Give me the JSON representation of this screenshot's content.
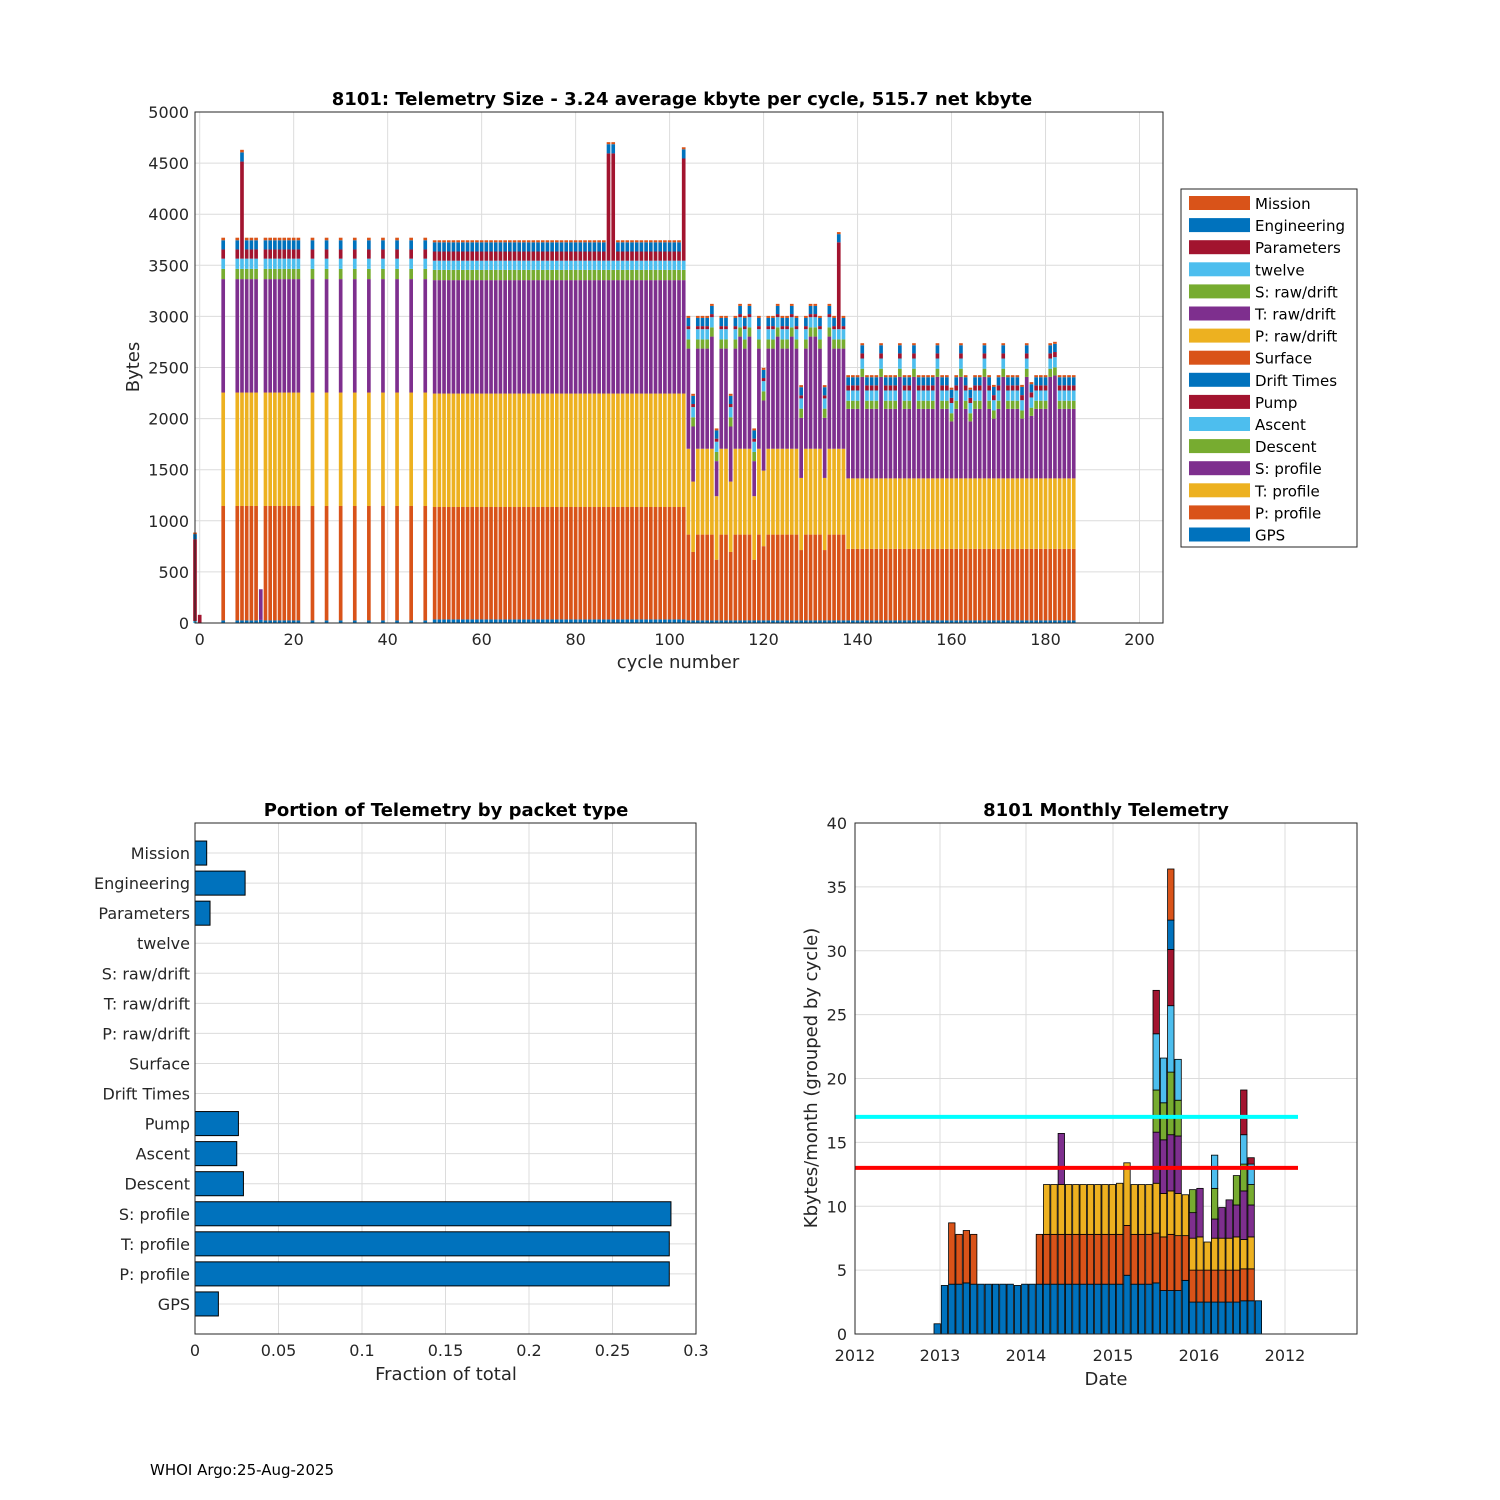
{
  "colors": {
    "Mission": "#D95319",
    "Engineering": "#0072BD",
    "Parameters": "#A2142F",
    "twelve": "#4DBEEE",
    "S: raw/drift": "#77AC30",
    "T: raw/drift": "#7E2F8E",
    "P: raw/drift": "#EDB120",
    "Surface": "#D95319",
    "Drift Times": "#0072BD",
    "Pump": "#A2142F",
    "Ascent": "#4DBEEE",
    "Descent": "#77AC30",
    "S: profile": "#7E2F8E",
    "T: profile": "#EDB120",
    "P: profile": "#D95319",
    "GPS": "#0072BD",
    "cyan_line": "#00FFFF",
    "red_line": "#FF0000"
  },
  "footer": "WHOI Argo:25-Aug-2025",
  "chart_data": [
    {
      "type": "bar",
      "stacked": true,
      "title": "8101: Telemetry Size - 3.24 average kbyte per cycle,  515.7 net kbyte",
      "xlabel": "cycle number",
      "ylabel": "Bytes",
      "xlim": [
        -1,
        205
      ],
      "ylim": [
        0,
        5000
      ],
      "xticks": [
        0,
        20,
        40,
        60,
        80,
        100,
        120,
        140,
        160,
        180,
        200
      ],
      "yticks": [
        0,
        500,
        1000,
        1500,
        2000,
        2500,
        3000,
        3500,
        4000,
        4500,
        5000
      ],
      "grid": true,
      "legend_position": "outside-right",
      "legend": [
        "Mission",
        "Engineering",
        "Parameters",
        "twelve",
        "S: raw/drift",
        "T: raw/drift",
        "P: raw/drift",
        "Surface",
        "Drift Times",
        "Pump",
        "Ascent",
        "Descent",
        "S: profile",
        "T: profile",
        "P: profile",
        "GPS"
      ],
      "stack_order_bottom_up": [
        "GPS",
        "P: profile",
        "T: profile",
        "S: profile",
        "Descent",
        "Ascent",
        "Pump",
        "Drift Times",
        "Surface",
        "P: raw/drift",
        "T: raw/drift",
        "S: raw/drift",
        "twelve",
        "Parameters",
        "Engineering",
        "Mission"
      ],
      "special_bars": [
        {
          "cycle": -1,
          "segments": {
            "Pump": 800,
            "Ascent": 20,
            "Engineering": 50,
            "Mission": 15
          }
        },
        {
          "cycle": 0,
          "segments": {
            "Pump": 80
          }
        },
        {
          "cycle": 13,
          "segments": {
            "GPS": 30,
            "S: profile": 300
          }
        },
        {
          "cycle": 9,
          "total_override": 4600,
          "segments": {
            "Pump": 950
          }
        },
        {
          "cycle": 87,
          "total_override": 4620,
          "segments": {
            "Pump": 1050
          }
        },
        {
          "cycle": 88,
          "total_override": 4600,
          "segments": {
            "Pump": 1050
          }
        },
        {
          "cycle": 103,
          "total_override": 4580,
          "segments": {
            "Pump": 1000
          }
        },
        {
          "cycle": 136,
          "total_override": 4060,
          "segments": {
            "Pump": 850
          }
        }
      ],
      "phases": [
        {
          "name": "phase1",
          "cycles": "5-50 (odd sampling, gaps)",
          "segments": {
            "GPS": 25,
            "P: profile": 1120,
            "T: profile": 1110,
            "S: profile": 1110,
            "Descent": 100,
            "Ascent": 100,
            "Pump": 90,
            "Engineering": 90,
            "Mission": 25
          }
        },
        {
          "name": "phase2",
          "cycles": "50-104",
          "segments": {
            "GPS": 35,
            "P: profile": 1100,
            "T: profile": 1110,
            "S: profile": 1110,
            "Descent": 100,
            "Ascent": 90,
            "Pump": 90,
            "Engineering": 90,
            "Mission": 20
          }
        },
        {
          "name": "phase3",
          "cycles": "104-138",
          "segments": {
            "GPS": 25,
            "P: profile": 840,
            "T: profile": 840,
            "S: profile": 980,
            "Descent": 90,
            "Ascent": 100,
            "Pump": 30,
            "Engineering": 80,
            "Mission": 20
          }
        },
        {
          "name": "phase4",
          "cycles": "138-186",
          "segments": {
            "GPS": 25,
            "P: profile": 700,
            "T: profile": 690,
            "S: profile": 680,
            "Descent": 80,
            "Ascent": 100,
            "Pump": 50,
            "Engineering": 80,
            "Mission": 20
          }
        }
      ]
    },
    {
      "type": "bar",
      "orientation": "horizontal",
      "title": "Portion of Telemetry by packet type",
      "xlabel": "Fraction of total",
      "ylabel": "",
      "xlim": [
        0,
        0.3
      ],
      "xticks": [
        0,
        0.05,
        0.1,
        0.15,
        0.2,
        0.25,
        0.3
      ],
      "xtick_labels": [
        "0",
        "0.05",
        "0.1",
        "0.15",
        "0.2",
        "0.25",
        "0.3"
      ],
      "grid": true,
      "categories": [
        "Mission",
        "Engineering",
        "Parameters",
        "twelve",
        "S: raw/drift",
        "T: raw/drift",
        "P: raw/drift",
        "Surface",
        "Drift Times",
        "Pump",
        "Ascent",
        "Descent",
        "S: profile",
        "T: profile",
        "P: profile",
        "GPS"
      ],
      "values": [
        0.007,
        0.03,
        0.009,
        0,
        0,
        0,
        0,
        0,
        0,
        0.026,
        0.025,
        0.029,
        0.285,
        0.284,
        0.284,
        0.014
      ],
      "color": "#0072BD"
    },
    {
      "type": "bar",
      "stacked": true,
      "title": "8101 Monthly Telemetry",
      "xlabel": "Date",
      "ylabel": "Kbytes/month (grouped by cycle)",
      "ylim": [
        0,
        40
      ],
      "yticks": [
        0,
        5,
        10,
        15,
        20,
        25,
        30,
        35,
        40
      ],
      "xtick_labels": [
        "2012",
        "2013",
        "2014",
        "2015",
        "2016",
        "2012"
      ],
      "grid": true,
      "hlines": [
        {
          "y": 17,
          "color": "#00FFFF"
        },
        {
          "y": 13,
          "color": "#FF0000"
        }
      ],
      "bar_order": "left-to-right, months from late 2012",
      "monthly": [
        {
          "seg": [
            0.8
          ]
        },
        {
          "seg": [
            3.8
          ]
        },
        {
          "seg": [
            3.9,
            4.8
          ]
        },
        {
          "seg": [
            3.9,
            3.9
          ]
        },
        {
          "seg": [
            4.0,
            4.1
          ]
        },
        {
          "seg": [
            3.9,
            3.9
          ]
        },
        {
          "seg": [
            3.9
          ]
        },
        {
          "seg": [
            3.9
          ]
        },
        {
          "seg": [
            3.9
          ]
        },
        {
          "seg": [
            3.9
          ]
        },
        {
          "seg": [
            3.9
          ]
        },
        {
          "seg": [
            3.8
          ]
        },
        {
          "seg": [
            3.9
          ]
        },
        {
          "seg": [
            3.9
          ]
        },
        {
          "seg": [
            3.9,
            3.9
          ]
        },
        {
          "seg": [
            3.9,
            3.9,
            3.9
          ]
        },
        {
          "seg": [
            3.9,
            3.9,
            3.9
          ]
        },
        {
          "seg": [
            3.9,
            3.9,
            3.9,
            4.0
          ]
        },
        {
          "seg": [
            3.9,
            3.9,
            3.9
          ]
        },
        {
          "seg": [
            3.9,
            3.9,
            3.9
          ]
        },
        {
          "seg": [
            3.9,
            3.9,
            3.9
          ]
        },
        {
          "seg": [
            3.9,
            3.9,
            3.9
          ]
        },
        {
          "seg": [
            3.9,
            3.9,
            3.9
          ]
        },
        {
          "seg": [
            3.9,
            3.9,
            3.9
          ]
        },
        {
          "seg": [
            3.9,
            3.9,
            3.9
          ]
        },
        {
          "seg": [
            3.9,
            3.9,
            4.0
          ]
        },
        {
          "seg": [
            4.6,
            3.9,
            4.9
          ]
        },
        {
          "seg": [
            3.9,
            3.9,
            3.9
          ]
        },
        {
          "seg": [
            3.9,
            3.9,
            3.9
          ]
        },
        {
          "seg": [
            3.9,
            3.9,
            3.9
          ]
        },
        {
          "seg": [
            4.0,
            3.9,
            3.9,
            4.0,
            3.3,
            4.4,
            3.4
          ]
        },
        {
          "seg": [
            3.4,
            4.2,
            3.4,
            4.2,
            2.9,
            3.5
          ]
        },
        {
          "seg": [
            3.4,
            4.4,
            3.4,
            4.4,
            4.9,
            5.2,
            4.4,
            2.3,
            4.0
          ]
        },
        {
          "seg": [
            3.4,
            4.3,
            3.3,
            4.5,
            2.8,
            3.2
          ]
        },
        {
          "seg": [
            4.2,
            3.5,
            3.2
          ]
        },
        {
          "seg": [
            2.5,
            2.5,
            2.5,
            2.0,
            1.8
          ]
        },
        {
          "seg": [
            2.5,
            2.5,
            2.6,
            3.8
          ]
        },
        {
          "seg": [
            2.5,
            2.5,
            2.2
          ]
        },
        {
          "seg": [
            2.5,
            2.5,
            2.5,
            1.5,
            2.4,
            2.6
          ]
        },
        {
          "seg": [
            2.5,
            2.5,
            2.5,
            2.4
          ]
        },
        {
          "seg": [
            2.5,
            2.5,
            2.5,
            3.0
          ]
        },
        {
          "seg": [
            2.5,
            2.5,
            2.6,
            2.5,
            2.3
          ]
        },
        {
          "seg": [
            2.6,
            2.5,
            2.3,
            3.8,
            2.1,
            2.3,
            3.5
          ]
        },
        {
          "seg": [
            2.6,
            2.5,
            2.5,
            2.5,
            1.6,
            1.6,
            0.5
          ]
        },
        {
          "seg": [
            2.6
          ]
        }
      ]
    }
  ]
}
